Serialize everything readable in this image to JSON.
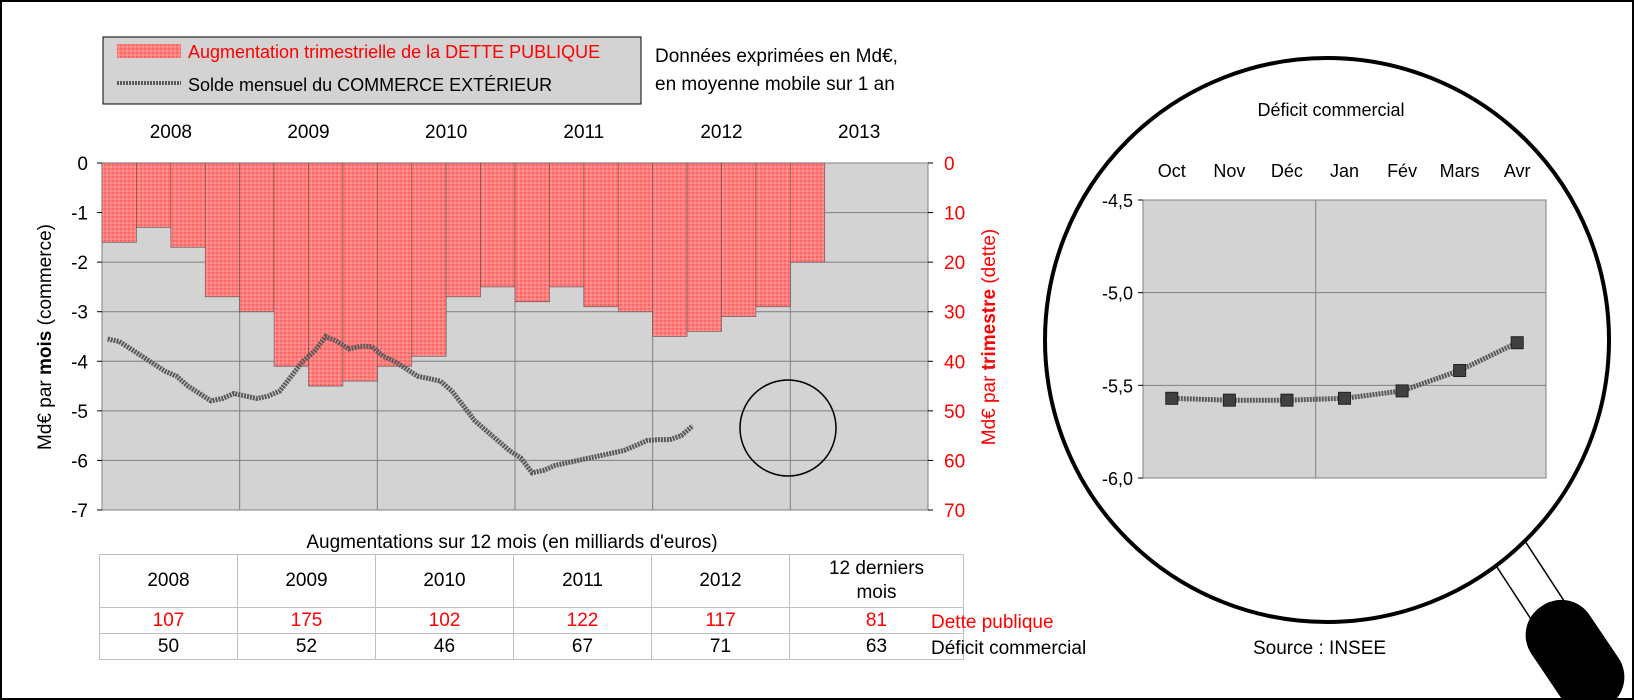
{
  "legend": {
    "debt_label": "Augmentation trimestrielle de la DETTE PUBLIQUE",
    "trade_label": "Solde mensuel du COMMERCE EXTÉRIEUR"
  },
  "note": {
    "line1": "Données exprimées en Md€,",
    "line2": "en moyenne mobile sur 1 an"
  },
  "colors": {
    "debt": "#ff7f7f",
    "debt_text": "#ff0000",
    "trade_line": "#595959",
    "plot_bg": "#d3d3d3"
  },
  "chart_data": [
    {
      "type": "bar+line",
      "years": [
        "2008",
        "2009",
        "2010",
        "2011",
        "2012",
        "2013"
      ],
      "left_axis": {
        "label_prefix": "Md€ par ",
        "label_bold": "mois",
        "label_suffix": " (commerce)",
        "range": [
          -7,
          0
        ],
        "ticks": [
          "0",
          "-1",
          "-2",
          "-3",
          "-4",
          "-5",
          "-6",
          "-7"
        ]
      },
      "right_axis": {
        "label_prefix": "Md€ par ",
        "label_bold": "trimestre",
        "label_suffix": " (dette)",
        "range": [
          0,
          70
        ],
        "ticks": [
          "0",
          "10",
          "20",
          "30",
          "40",
          "50",
          "60",
          "70"
        ]
      },
      "debt_quarterly": [
        16,
        13,
        17,
        27,
        30,
        41,
        45,
        44,
        41,
        39,
        27,
        25,
        28,
        25,
        29,
        30,
        35,
        34,
        31,
        29,
        20
      ],
      "trade_monthly": [
        -3.55,
        -3.6,
        -3.75,
        -3.9,
        -4.05,
        -4.2,
        -4.3,
        -4.5,
        -4.65,
        -4.8,
        -4.75,
        -4.65,
        -4.7,
        -4.75,
        -4.7,
        -4.6,
        -4.3,
        -4.0,
        -3.8,
        -3.5,
        -3.6,
        -3.75,
        -3.7,
        -3.7,
        -3.9,
        -4.0,
        -4.15,
        -4.3,
        -4.35,
        -4.4,
        -4.6,
        -4.9,
        -5.2,
        -5.4,
        -5.6,
        -5.8,
        -5.95,
        -6.25,
        -6.2,
        -6.1,
        -6.05,
        -6.0,
        -5.95,
        -5.9,
        -5.85,
        -5.8,
        -5.7,
        -5.6,
        -5.58,
        -5.58,
        -5.5,
        -5.3
      ]
    },
    {
      "type": "line",
      "title": "Déficit commercial",
      "categories": [
        "Oct",
        "Nov",
        "Déc",
        "Jan",
        "Fév",
        "Mars",
        "Avr"
      ],
      "values": [
        -5.57,
        -5.58,
        -5.58,
        -5.57,
        -5.53,
        -5.42,
        -5.27
      ],
      "ylim": [
        -6.0,
        -4.5
      ],
      "yticks": [
        "-4,5",
        "-5,0",
        "-5,5",
        "-6,0"
      ]
    }
  ],
  "table": {
    "title": "Augmentations sur 12 mois (en milliards d'euros)",
    "headers": [
      "2008",
      "2009",
      "2010",
      "2011",
      "2012",
      "12 derniers mois"
    ],
    "debt_row": [
      "107",
      "175",
      "102",
      "122",
      "117",
      "81"
    ],
    "debt_label": "Dette publique",
    "trade_row": [
      "50",
      "52",
      "46",
      "67",
      "71",
      "63"
    ],
    "trade_label": "Déficit commercial"
  },
  "source": "Source : INSEE"
}
